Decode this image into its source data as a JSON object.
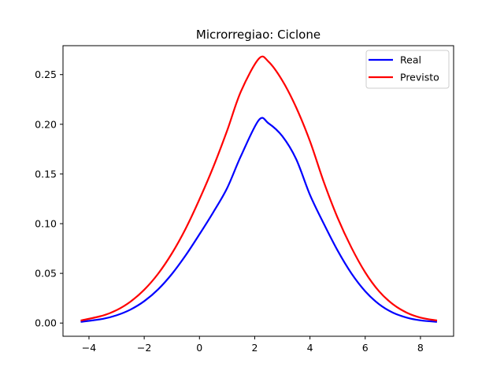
{
  "chart_data": {
    "type": "line",
    "title": "Microrregiao: Ciclone",
    "xlabel": "",
    "ylabel": "",
    "xlim": [
      -4.94,
      9.2
    ],
    "ylim": [
      -0.0133,
      0.2791
    ],
    "xticks": [
      -4,
      -2,
      0,
      2,
      4,
      6,
      8
    ],
    "xtick_labels": [
      "−4",
      "−2",
      "0",
      "2",
      "4",
      "6",
      "8"
    ],
    "yticks": [
      0.0,
      0.05,
      0.1,
      0.15,
      0.2,
      0.25
    ],
    "ytick_labels": [
      "0.00",
      "0.05",
      "0.10",
      "0.15",
      "0.20",
      "0.25"
    ],
    "grid": false,
    "legend_position": "top-right",
    "series": [
      {
        "name": "Real",
        "color": "#0000ff",
        "x": [
          -4.3,
          -3.5,
          -3.0,
          -2.5,
          -2.0,
          -1.5,
          -1.0,
          -0.5,
          0.0,
          0.5,
          1.0,
          1.5,
          2.15,
          2.5,
          3.0,
          3.5,
          4.0,
          4.5,
          5.0,
          5.5,
          6.0,
          6.5,
          7.0,
          7.5,
          8.0,
          8.6
        ],
        "y": [
          0.0012,
          0.0042,
          0.0078,
          0.0135,
          0.022,
          0.0338,
          0.0493,
          0.0681,
          0.0893,
          0.1115,
          0.1357,
          0.168,
          0.2043,
          0.201,
          0.188,
          0.165,
          0.129,
          0.1,
          0.073,
          0.05,
          0.032,
          0.019,
          0.0105,
          0.0055,
          0.0027,
          0.0012
        ]
      },
      {
        "name": "Previsto",
        "color": "#ff0000",
        "x": [
          -4.3,
          -3.5,
          -3.0,
          -2.5,
          -2.0,
          -1.5,
          -1.0,
          -0.5,
          0.0,
          0.5,
          1.0,
          1.5,
          2.15,
          2.5,
          3.0,
          3.5,
          4.0,
          4.5,
          5.0,
          5.5,
          6.0,
          6.5,
          7.0,
          7.5,
          8.0,
          8.6
        ],
        "y": [
          0.0025,
          0.0075,
          0.013,
          0.0215,
          0.0335,
          0.0495,
          0.07,
          0.095,
          0.1245,
          0.157,
          0.1935,
          0.233,
          0.266,
          0.263,
          0.244,
          0.217,
          0.183,
          0.142,
          0.106,
          0.076,
          0.051,
          0.032,
          0.019,
          0.0105,
          0.0055,
          0.0025
        ]
      }
    ]
  }
}
